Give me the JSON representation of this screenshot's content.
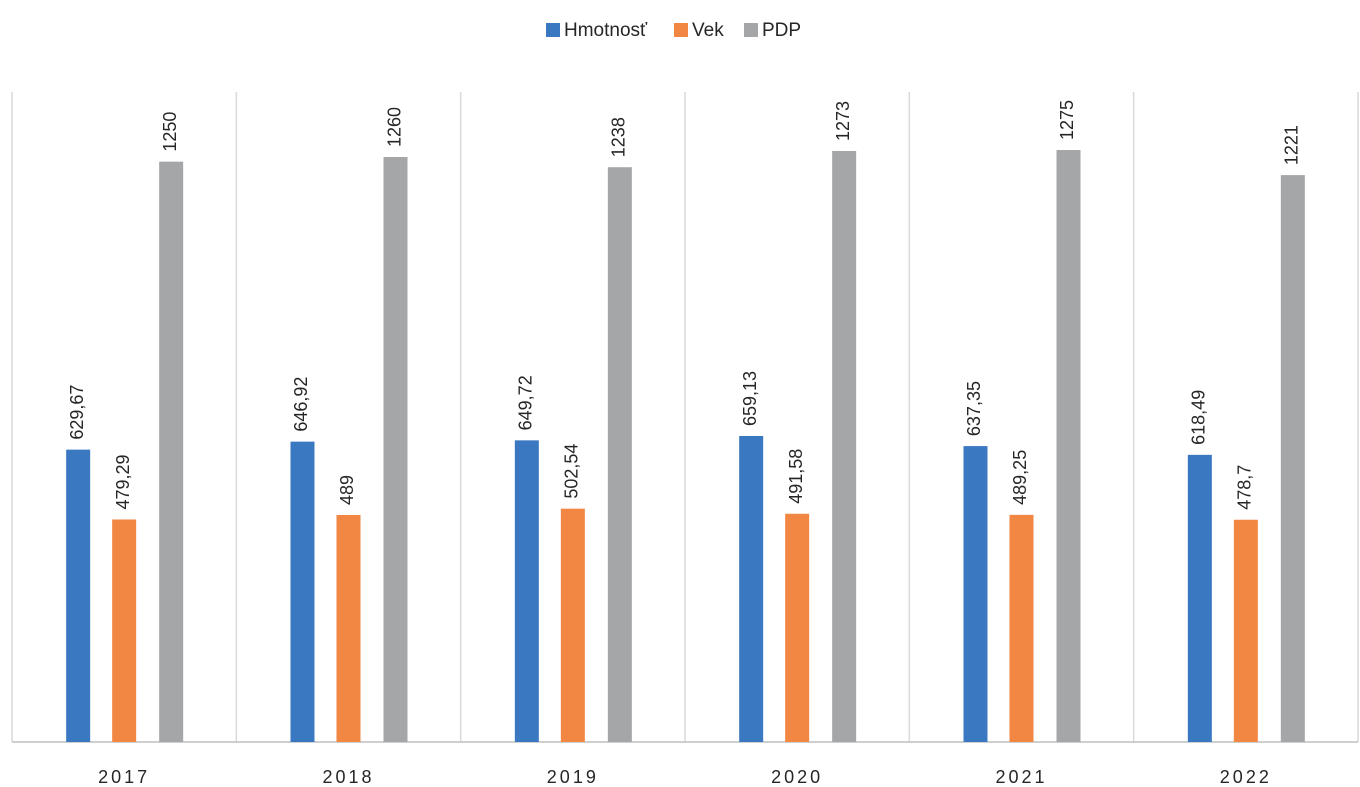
{
  "chart_data": {
    "type": "bar",
    "categories": [
      "2017",
      "2018",
      "2019",
      "2020",
      "2021",
      "2022"
    ],
    "series": [
      {
        "name": "Hmotnosť",
        "color": "#3a78c2",
        "values": [
          629.67,
          646.92,
          649.72,
          659.13,
          637.35,
          618.49
        ],
        "value_labels": [
          "629,67",
          "646,92",
          "649,72",
          "659,13",
          "637,35",
          "618,49"
        ]
      },
      {
        "name": "Vek",
        "color": "#f28643",
        "values": [
          479.29,
          489,
          502.54,
          491.58,
          489.25,
          478.7
        ],
        "value_labels": [
          "479,29",
          "489",
          "502,54",
          "491,58",
          "489,25",
          "478,7"
        ]
      },
      {
        "name": "PDP",
        "color": "#a5a6a8",
        "values": [
          1250,
          1260,
          1238,
          1273,
          1275,
          1221
        ],
        "value_labels": [
          "1250",
          "1260",
          "1238",
          "1273",
          "1275",
          "1221"
        ]
      }
    ],
    "ylim": [
      0,
      1400
    ],
    "legend": "top"
  }
}
